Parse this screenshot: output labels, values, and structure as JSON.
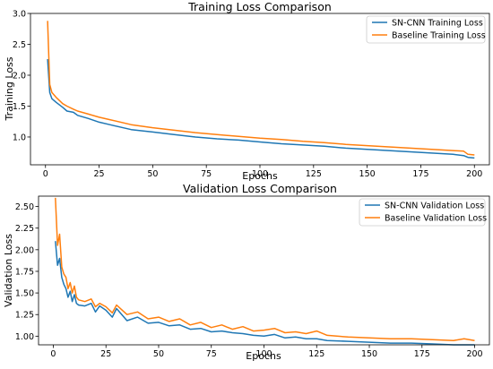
{
  "chart_data": [
    {
      "type": "line",
      "title": "Training Loss Comparison",
      "xlabel": "Epochs",
      "ylabel": "Training Loss",
      "xlim": [
        -7,
        207
      ],
      "ylim": [
        0.55,
        3.0
      ],
      "xticks": [
        0,
        25,
        50,
        75,
        100,
        125,
        150,
        175,
        200
      ],
      "yticks": [
        1.0,
        1.5,
        2.0,
        2.5,
        3.0
      ],
      "ytick_labels": [
        "1.0",
        "1.5",
        "2.0",
        "2.5",
        "3.0"
      ],
      "legend": "top-right",
      "x": [
        1,
        2,
        3,
        5,
        8,
        10,
        13,
        15,
        20,
        25,
        30,
        40,
        50,
        60,
        70,
        80,
        90,
        100,
        110,
        120,
        130,
        140,
        150,
        160,
        170,
        180,
        190,
        195,
        197,
        200
      ],
      "series": [
        {
          "name": "SN-CNN Training Loss",
          "color": "#1f77b4",
          "values": [
            2.26,
            1.72,
            1.62,
            1.56,
            1.48,
            1.42,
            1.4,
            1.35,
            1.3,
            1.24,
            1.2,
            1.12,
            1.08,
            1.04,
            1.0,
            0.97,
            0.95,
            0.92,
            0.89,
            0.87,
            0.85,
            0.82,
            0.8,
            0.78,
            0.76,
            0.74,
            0.72,
            0.7,
            0.67,
            0.66
          ]
        },
        {
          "name": "Baseline Training Loss",
          "color": "#ff7f0e",
          "values": [
            2.88,
            1.85,
            1.72,
            1.64,
            1.54,
            1.5,
            1.45,
            1.42,
            1.37,
            1.32,
            1.28,
            1.2,
            1.15,
            1.11,
            1.07,
            1.04,
            1.01,
            0.98,
            0.96,
            0.93,
            0.91,
            0.88,
            0.86,
            0.84,
            0.82,
            0.8,
            0.78,
            0.77,
            0.72,
            0.71
          ]
        }
      ]
    },
    {
      "type": "line",
      "title": "Validation Loss Comparison",
      "xlabel": "Epochs",
      "ylabel": "Validation Loss",
      "xlim": [
        -7,
        207
      ],
      "ylim": [
        0.9,
        2.62
      ],
      "xticks": [
        0,
        25,
        50,
        75,
        100,
        125,
        150,
        175,
        200
      ],
      "yticks": [
        1.0,
        1.25,
        1.5,
        1.75,
        2.0,
        2.25,
        2.5
      ],
      "ytick_labels": [
        "1.00",
        "1.25",
        "1.50",
        "1.75",
        "2.00",
        "2.25",
        "2.50"
      ],
      "legend": "top-right",
      "x": [
        1,
        2,
        3,
        4,
        5,
        6,
        7,
        8,
        9,
        10,
        11,
        12,
        15,
        18,
        20,
        22,
        25,
        28,
        30,
        35,
        40,
        45,
        50,
        55,
        60,
        65,
        70,
        75,
        80,
        85,
        90,
        95,
        100,
        105,
        110,
        115,
        120,
        125,
        130,
        140,
        150,
        160,
        170,
        180,
        190,
        195,
        200
      ],
      "series": [
        {
          "name": "SN-CNN Validation Loss",
          "color": "#1f77b4",
          "values": [
            2.1,
            1.82,
            1.9,
            1.68,
            1.6,
            1.55,
            1.45,
            1.52,
            1.4,
            1.48,
            1.38,
            1.36,
            1.35,
            1.38,
            1.28,
            1.35,
            1.3,
            1.22,
            1.32,
            1.18,
            1.22,
            1.15,
            1.16,
            1.12,
            1.13,
            1.08,
            1.09,
            1.05,
            1.06,
            1.04,
            1.03,
            1.01,
            1.0,
            1.02,
            0.98,
            0.99,
            0.97,
            0.97,
            0.95,
            0.94,
            0.93,
            0.92,
            0.92,
            0.91,
            0.9,
            0.9,
            0.9
          ]
        },
        {
          "name": "Baseline Validation Loss",
          "color": "#ff7f0e",
          "values": [
            2.6,
            2.05,
            2.18,
            1.8,
            1.72,
            1.68,
            1.55,
            1.62,
            1.5,
            1.58,
            1.45,
            1.42,
            1.4,
            1.43,
            1.34,
            1.38,
            1.34,
            1.27,
            1.36,
            1.25,
            1.28,
            1.2,
            1.22,
            1.17,
            1.2,
            1.13,
            1.16,
            1.1,
            1.13,
            1.08,
            1.11,
            1.06,
            1.07,
            1.09,
            1.04,
            1.05,
            1.03,
            1.06,
            1.01,
            0.99,
            0.98,
            0.97,
            0.97,
            0.96,
            0.95,
            0.97,
            0.95
          ]
        }
      ]
    }
  ]
}
